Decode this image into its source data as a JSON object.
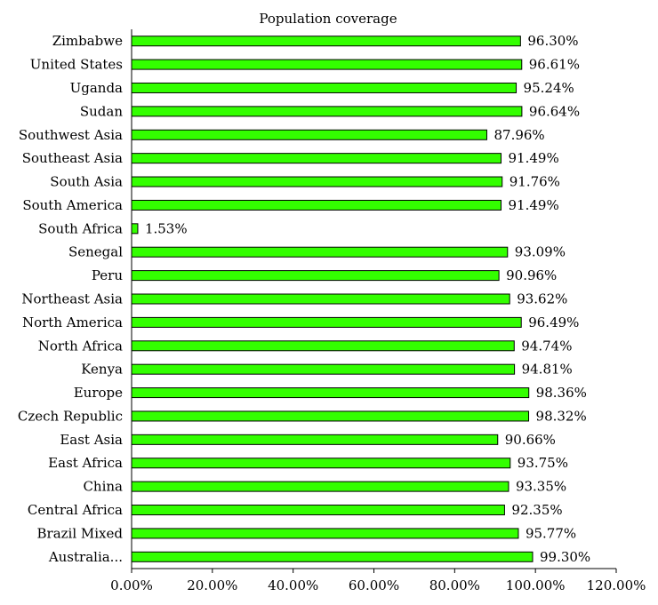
{
  "chart_data": {
    "type": "bar",
    "orientation": "horizontal",
    "title": "Population coverage",
    "xlabel": "",
    "ylabel": "",
    "xlim": [
      0,
      120
    ],
    "x_ticks": [
      0,
      20,
      40,
      60,
      80,
      100,
      120
    ],
    "x_tick_labels": [
      "0.00%",
      "20.00%",
      "40.00%",
      "60.00%",
      "80.00%",
      "100.00%",
      "120.00%"
    ],
    "grid": false,
    "legend": "none",
    "bar_color": "#33ff00",
    "categories": [
      "Zimbabwe",
      "United States",
      "Uganda",
      "Sudan",
      "Southwest Asia",
      "Southeast Asia",
      "South Asia",
      "South America",
      "South Africa",
      "Senegal",
      "Peru",
      "Northeast Asia",
      "North America",
      "North Africa",
      "Kenya",
      "Europe",
      "Czech Republic",
      "East Asia",
      "East Africa",
      "China",
      "Central Africa",
      "Brazil Mixed",
      "Australia..."
    ],
    "values": [
      96.3,
      96.61,
      95.24,
      96.64,
      87.96,
      91.49,
      91.76,
      91.49,
      1.53,
      93.09,
      90.96,
      93.62,
      96.49,
      94.74,
      94.81,
      98.36,
      98.32,
      90.66,
      93.75,
      93.35,
      92.35,
      95.77,
      99.3
    ],
    "value_labels": [
      "96.30%",
      "96.61%",
      "95.24%",
      "96.64%",
      "87.96%",
      "91.49%",
      "91.76%",
      "91.49%",
      "1.53%",
      "93.09%",
      "90.96%",
      "93.62%",
      "96.49%",
      "94.74%",
      "94.81%",
      "98.36%",
      "98.32%",
      "90.66%",
      "93.75%",
      "93.35%",
      "92.35%",
      "95.77%",
      "99.30%"
    ]
  }
}
